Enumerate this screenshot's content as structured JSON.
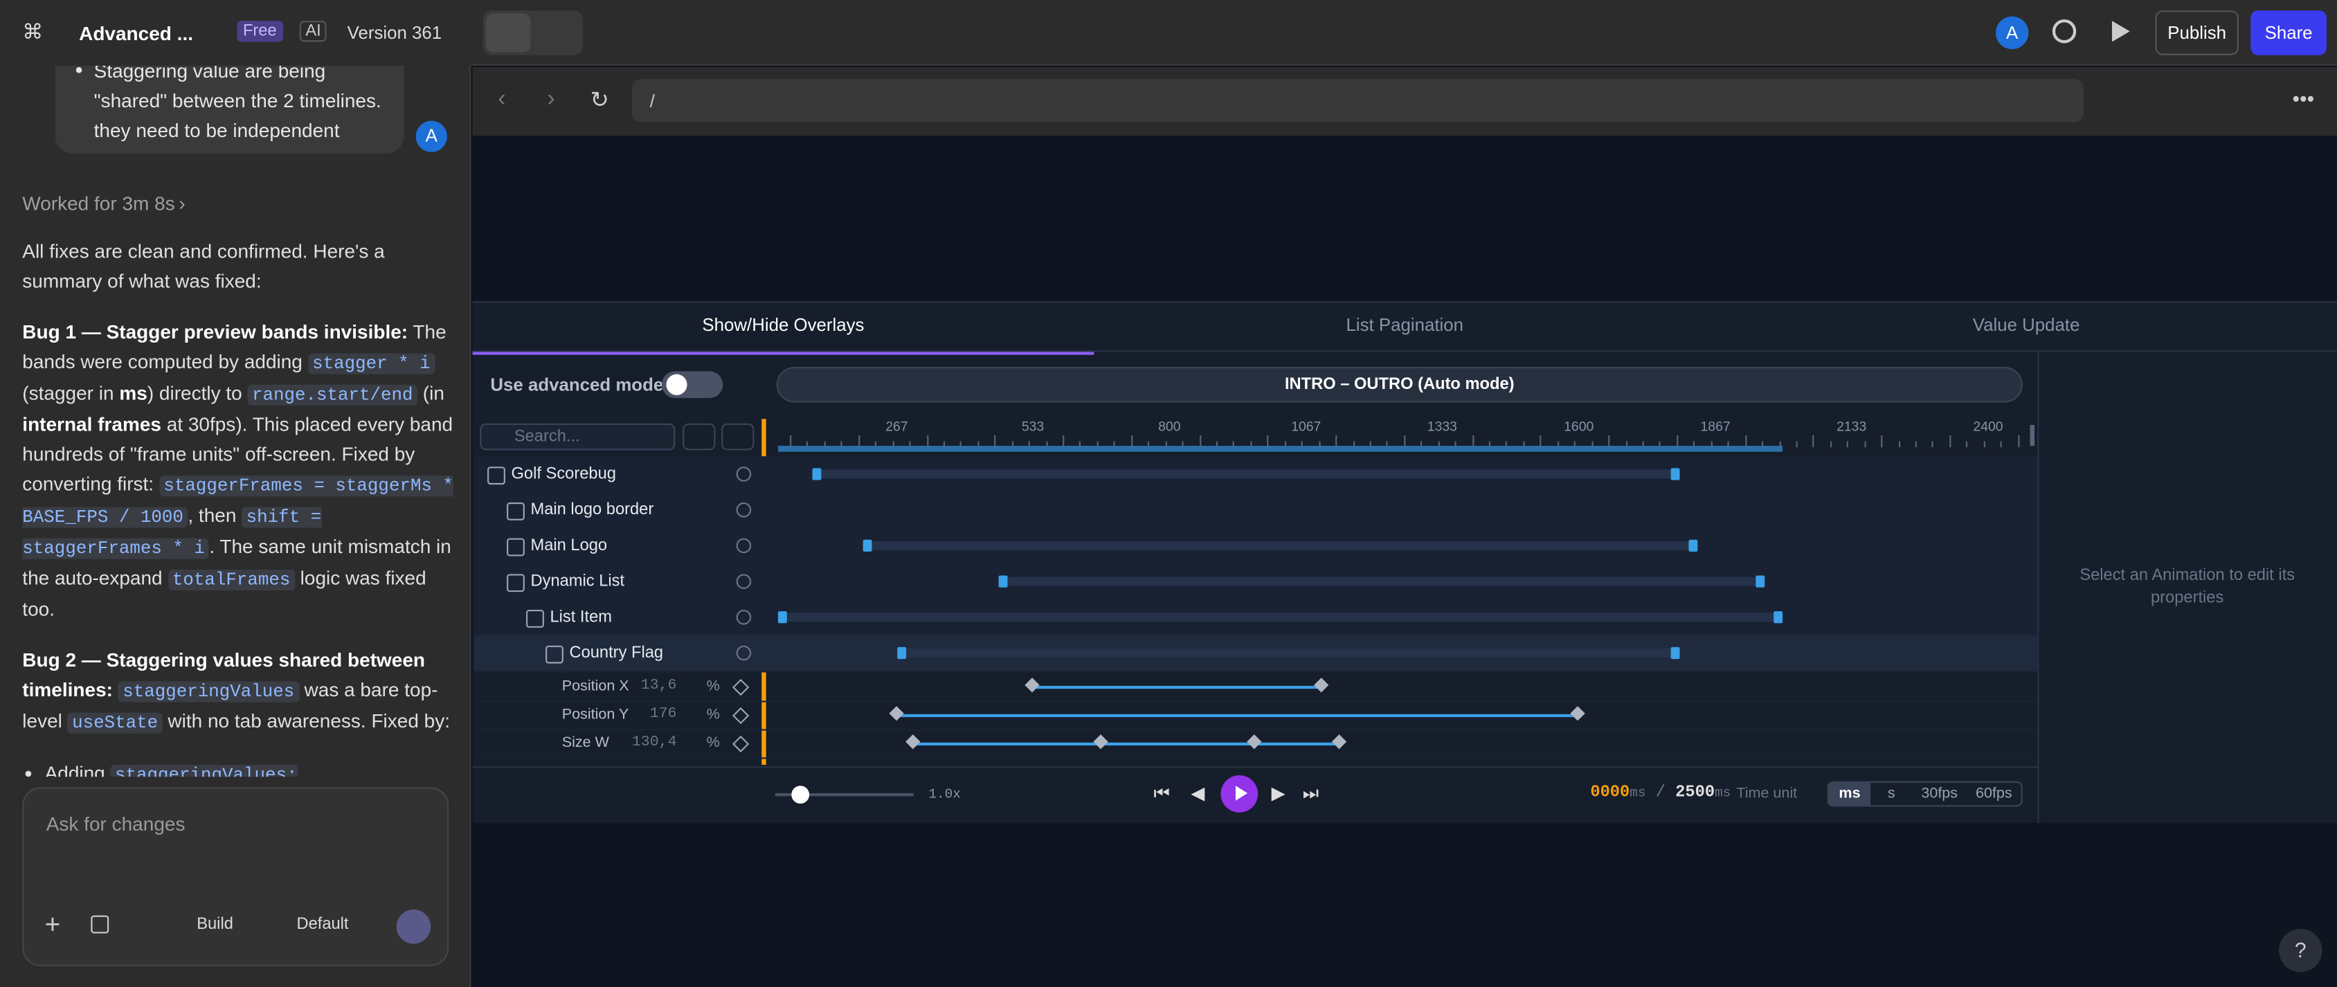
{
  "topbar": {
    "project": "Advanced ...",
    "badge_free": "Free",
    "badge_ai": "AI",
    "version": "Version 361",
    "avatar": "A",
    "publish": "Publish",
    "share": "Share"
  },
  "chat": {
    "user_bullet": "Staggering value are being \"shared\" between the 2 timelines. they need to be independent",
    "user_avatar": "A",
    "worked": "Worked for 3m 8s",
    "paragraphs": [
      [
        {
          "t": "All fixes are clean and confirmed. Here's a summary of what was fixed:"
        }
      ],
      [
        {
          "b": "Bug 1 — Stagger preview bands invisible:"
        },
        {
          "t": " The bands were computed by adding "
        },
        {
          "c": "stagger * i"
        },
        {
          "t": " (stagger in "
        },
        {
          "b": "ms"
        },
        {
          "t": ") directly to "
        },
        {
          "c": "range.start/end"
        },
        {
          "t": " (in "
        },
        {
          "b": "internal frames"
        },
        {
          "t": " at 30fps). This placed every band hundreds of \"frame units\" off-screen. Fixed by converting first: "
        },
        {
          "c": "staggerFrames = staggerMs * BASE_FPS / 1000"
        },
        {
          "t": ", then "
        },
        {
          "c": "shift = staggerFrames * i"
        },
        {
          "t": ". The same unit mismatch in the auto-expand "
        },
        {
          "c": "totalFrames"
        },
        {
          "t": " logic was fixed too."
        }
      ],
      [
        {
          "b": "Bug 2 — Staggering values shared between timelines:"
        },
        {
          "t": " "
        },
        {
          "c": "staggeringValues"
        },
        {
          "t": " was a bare top-level "
        },
        {
          "c": "useState"
        },
        {
          "t": " with no tab awareness. Fixed by:"
        }
      ]
    ],
    "bullet": [
      {
        "t": "Adding "
      },
      {
        "c": "staggeringValues: Record<string,"
      }
    ],
    "input": {
      "placeholder": "Ask for changes",
      "build": "Build",
      "default": "Default"
    }
  },
  "browser": {
    "url": "/"
  },
  "panel": {
    "tabs": [
      "Show/Hide Overlays",
      "List Pagination",
      "Value Update"
    ],
    "advanced": "Use advanced mode",
    "mode": "INTRO – OUTRO (Auto mode)",
    "search": "Search...",
    "ruler": [
      267,
      533,
      800,
      1067,
      1333,
      1600,
      1867,
      2133,
      2400
    ],
    "layers": [
      "Golf Scorebug",
      "Main logo border",
      "Main Logo",
      "Dynamic List",
      "List Item",
      "Country Flag"
    ],
    "props": [
      {
        "name": "Position X",
        "value": "13,6",
        "unit": "%"
      },
      {
        "name": "Position Y",
        "value": "176",
        "unit": "%"
      },
      {
        "name": "Size W",
        "value": "130,4",
        "unit": "%"
      }
    ],
    "speed": "1.0x",
    "time": "0000",
    "time_unit": "ms",
    "sep": "/",
    "total": "2500",
    "total_unit": "ms",
    "time_unit_label": "Time unit",
    "units": [
      "ms",
      "s",
      "30fps",
      "60fps"
    ],
    "empty": "Select an Animation to edit its properties"
  }
}
